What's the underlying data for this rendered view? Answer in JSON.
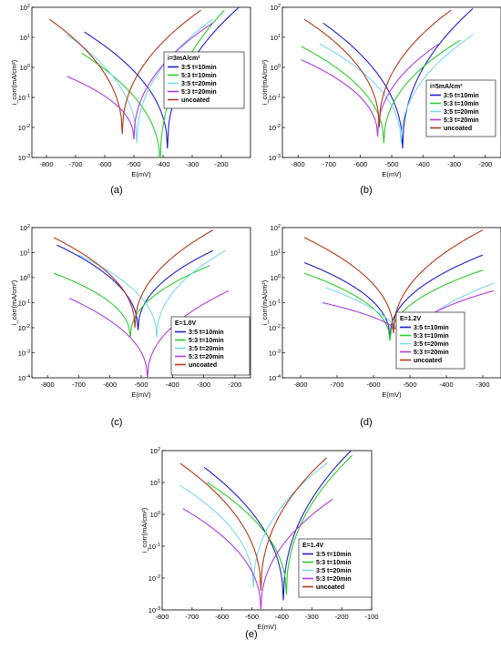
{
  "chart_data": [
    {
      "type": "line",
      "panel_label": "(a)",
      "xlabel": "E(mV)",
      "ylabel": "i_corr(mA/cm²)",
      "legend_title": "i=3mA/cm²",
      "xlim": [
        -850,
        -100
      ],
      "xticks": [
        -800,
        -700,
        -600,
        -500,
        -400,
        -300,
        -200
      ],
      "ylog": true,
      "ylim_exp": [
        -3,
        2
      ],
      "series": [
        {
          "name": "3:5 t=10min",
          "color": "#1f1fc8",
          "ecorr": -385,
          "icorr": 0.002,
          "left": [
            -670,
            15
          ],
          "right": [
            -130,
            120
          ]
        },
        {
          "name": "5:3 t=10min",
          "color": "#2ecc2e",
          "ecorr": -410,
          "icorr": 0.0006,
          "left": [
            -680,
            3
          ],
          "right": [
            -190,
            80
          ]
        },
        {
          "name": "3:5 t=20min",
          "color": "#7ad7ef",
          "ecorr": -490,
          "icorr": 0.003,
          "left": [
            -730,
            12
          ],
          "right": [
            -230,
            40
          ]
        },
        {
          "name": "5:3 t=20min",
          "color": "#b03ce0",
          "ecorr": -500,
          "icorr": 0.004,
          "left": [
            -730,
            0.5
          ],
          "right": [
            -230,
            30
          ]
        },
        {
          "name": "uncoated",
          "color": "#b03a1a",
          "ecorr": -540,
          "icorr": 0.006,
          "left": [
            -790,
            40
          ],
          "right": [
            -270,
            80
          ]
        }
      ]
    },
    {
      "type": "line",
      "panel_label": "(b)",
      "xlabel": "E(mV)",
      "ylabel": "i_corr(mA/cm²)",
      "legend_title": "i=5mA/cm²",
      "xlim": [
        -850,
        -150
      ],
      "xticks": [
        -800,
        -700,
        -600,
        -500,
        -400,
        -300,
        -200
      ],
      "ylog": true,
      "ylim_exp": [
        -3,
        2
      ],
      "series": [
        {
          "name": "3:5 t=10min",
          "color": "#1f1fc8",
          "ecorr": -465,
          "icorr": 0.002,
          "left": [
            -720,
            30
          ],
          "right": [
            -240,
            90
          ]
        },
        {
          "name": "5:3 t=10min",
          "color": "#2ecc2e",
          "ecorr": -525,
          "icorr": 0.003,
          "left": [
            -790,
            5
          ],
          "right": [
            -280,
            8
          ]
        },
        {
          "name": "3:5 t=20min",
          "color": "#7ad7ef",
          "ecorr": -470,
          "icorr": 0.003,
          "left": [
            -730,
            6
          ],
          "right": [
            -240,
            12
          ]
        },
        {
          "name": "5:3 t=20min",
          "color": "#b03ce0",
          "ecorr": -545,
          "icorr": 0.005,
          "left": [
            -790,
            1.8
          ],
          "right": [
            -350,
            6
          ]
        },
        {
          "name": "uncoated",
          "color": "#b03a1a",
          "ecorr": -540,
          "icorr": 0.01,
          "left": [
            -780,
            40
          ],
          "right": [
            -310,
            80
          ]
        }
      ]
    },
    {
      "type": "line",
      "panel_label": "(c)",
      "xlabel": "E(mV)",
      "ylabel": "i_corr(mA/cm²)",
      "legend_title": "E=1.0V",
      "xlim": [
        -850,
        -150
      ],
      "xticks": [
        -800,
        -700,
        -600,
        -500,
        -400,
        -300,
        -200
      ],
      "ylog": true,
      "ylim_exp": [
        -4,
        2
      ],
      "series": [
        {
          "name": "3:5 t=10min",
          "color": "#1f1fc8",
          "ecorr": -510,
          "icorr": 0.008,
          "left": [
            -770,
            20
          ],
          "right": [
            -270,
            12
          ]
        },
        {
          "name": "5:3 t=10min",
          "color": "#2ecc2e",
          "ecorr": -535,
          "icorr": 0.004,
          "left": [
            -780,
            1.5
          ],
          "right": [
            -280,
            3
          ]
        },
        {
          "name": "3:5 t=20min",
          "color": "#7ad7ef",
          "ecorr": -450,
          "icorr": 0.004,
          "left": [
            -700,
            8
          ],
          "right": [
            -230,
            12
          ]
        },
        {
          "name": "5:3 t=20min",
          "color": "#b03ce0",
          "ecorr": -480,
          "icorr": 0.0001,
          "left": [
            -730,
            0.15
          ],
          "right": [
            -220,
            0.3
          ]
        },
        {
          "name": "uncoated",
          "color": "#b03a1a",
          "ecorr": -520,
          "icorr": 0.01,
          "left": [
            -780,
            40
          ],
          "right": [
            -270,
            80
          ]
        }
      ]
    },
    {
      "type": "line",
      "panel_label": "(d)",
      "xlabel": "E(mV)",
      "ylabel": "i_corr(mA/cm²)",
      "legend_title": "E=1.2V",
      "xlim": [
        -850,
        -250
      ],
      "xticks": [
        -800,
        -700,
        -600,
        -500,
        -400,
        -300
      ],
      "ylog": true,
      "ylim_exp": [
        -4,
        2
      ],
      "series": [
        {
          "name": "3:5 t=10min",
          "color": "#1f1fc8",
          "ecorr": -555,
          "icorr": 0.004,
          "left": [
            -790,
            4
          ],
          "right": [
            -300,
            8
          ]
        },
        {
          "name": "5:3 t=10min",
          "color": "#2ecc2e",
          "ecorr": -555,
          "icorr": 0.003,
          "left": [
            -790,
            1.5
          ],
          "right": [
            -300,
            2
          ]
        },
        {
          "name": "3:5 t=20min",
          "color": "#7ad7ef",
          "ecorr": -505,
          "icorr": 0.0008,
          "left": [
            -730,
            0.4
          ],
          "right": [
            -270,
            0.6
          ]
        },
        {
          "name": "5:3 t=20min",
          "color": "#b03ce0",
          "ecorr": -510,
          "icorr": 0.002,
          "left": [
            -740,
            0.1
          ],
          "right": [
            -270,
            0.3
          ]
        },
        {
          "name": "uncoated",
          "color": "#b03a1a",
          "ecorr": -545,
          "icorr": 0.006,
          "left": [
            -790,
            40
          ],
          "right": [
            -300,
            80
          ]
        }
      ]
    },
    {
      "type": "line",
      "panel_label": "(e)",
      "xlabel": "E(mV)",
      "ylabel": "i_corr(mA/cm²)",
      "legend_title": "E=1.4V",
      "xlim": [
        -800,
        -100
      ],
      "xticks": [
        -800,
        -700,
        -600,
        -500,
        -400,
        -300,
        -200,
        -100
      ],
      "ylog": true,
      "ylim_exp": [
        -3,
        2
      ],
      "series": [
        {
          "name": "3:5 t=10min",
          "color": "#1f1fc8",
          "ecorr": -395,
          "icorr": 0.002,
          "left": [
            -660,
            30
          ],
          "right": [
            -160,
            120
          ]
        },
        {
          "name": "5:3 t=10min",
          "color": "#2ecc2e",
          "ecorr": -385,
          "icorr": 0.003,
          "left": [
            -650,
            10
          ],
          "right": [
            -165,
            70
          ]
        },
        {
          "name": "3:5 t=20min",
          "color": "#7ad7ef",
          "ecorr": -495,
          "icorr": 0.005,
          "left": [
            -740,
            8
          ],
          "right": [
            -250,
            40
          ]
        },
        {
          "name": "5:3 t=20min",
          "color": "#b03ce0",
          "ecorr": -470,
          "icorr": 0.001,
          "left": [
            -730,
            1.5
          ],
          "right": [
            -230,
            3
          ]
        },
        {
          "name": "uncoated",
          "color": "#b03a1a",
          "ecorr": -470,
          "icorr": 0.004,
          "left": [
            -740,
            40
          ],
          "right": [
            -250,
            60
          ]
        }
      ]
    }
  ]
}
